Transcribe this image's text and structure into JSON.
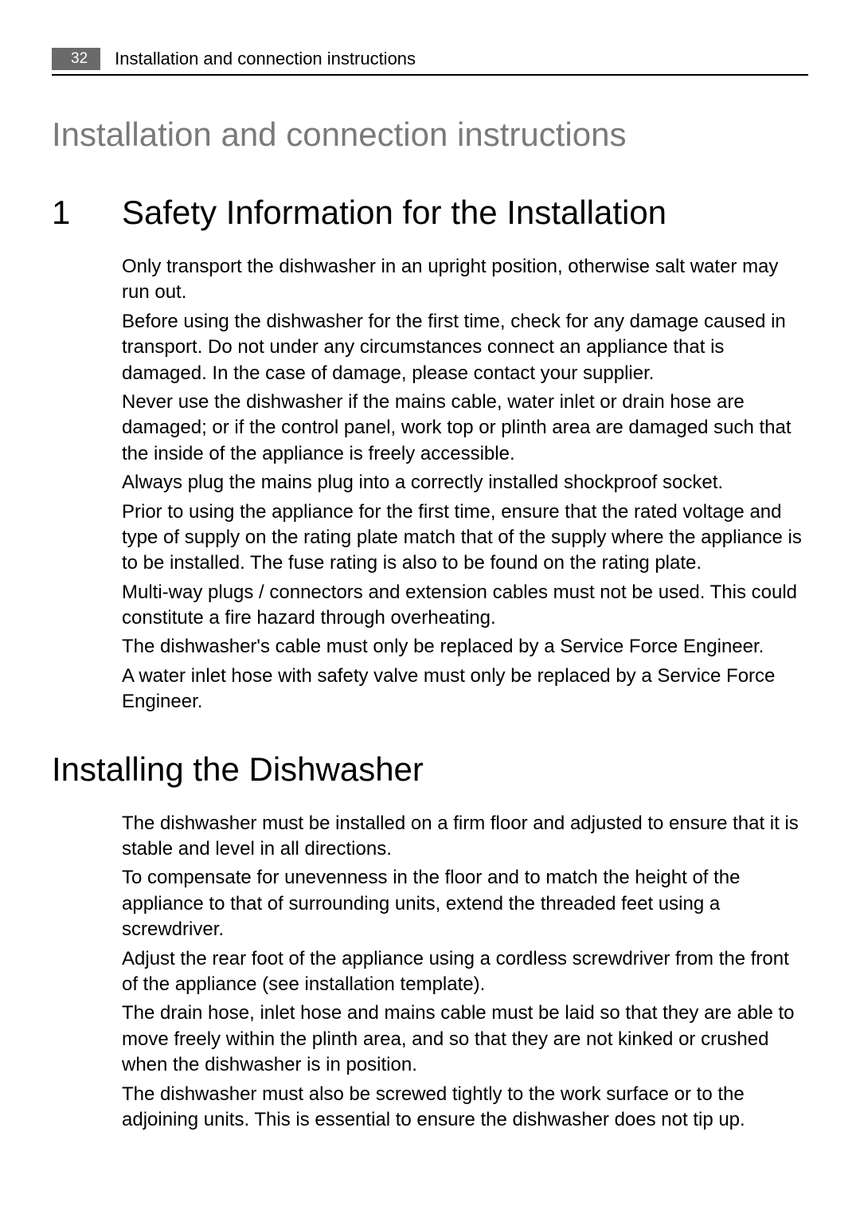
{
  "header": {
    "page_number": "32",
    "title": "Installation and connection instructions"
  },
  "main_title": "Installation and connection instructions",
  "section1": {
    "icon": "1",
    "heading": "Safety Information for the Installation",
    "paragraphs": [
      "Only transport the dishwasher in an upright position, otherwise salt water may run out.",
      "Before using the dishwasher for the first time, check for any damage caused in transport. Do not under any circumstances connect an appliance that is damaged. In the case of damage, please contact your supplier.",
      "Never use the dishwasher if the mains cable, water inlet or drain hose are damaged; or if the control panel, work top or plinth area are damaged such that the inside of the appliance is freely accessible.",
      "Always plug the mains plug into a correctly installed shockproof socket.",
      "Prior to using the appliance for the first time, ensure that the rated voltage and type of supply on the rating plate match that of the supply where the appliance is to be installed. The fuse rating is also to be found on the rating plate.",
      "Multi-way plugs / connectors and extension cables must not be used. This could constitute a fire hazard through overheating.",
      "The dishwasher's cable must only be replaced by a Service Force Engineer.",
      "A water inlet hose with safety valve must only be replaced by a Service Force Engineer."
    ]
  },
  "section2": {
    "heading": "Installing the Dishwasher",
    "paragraphs": [
      "The dishwasher must be installed on a firm floor and adjusted to ensure that it is stable and level in all directions.",
      "To compensate for unevenness in the floor and to match the height of the appliance to that of surrounding units, extend the threaded feet using a screwdriver.",
      "Adjust the rear foot of the appliance using a cordless screwdriver from the front of the appliance (see installation template).",
      "The drain hose, inlet hose and mains cable must be laid so that they are able to move freely within the plinth area, and so that they are not kinked or crushed when the dishwasher is in position.",
      "The dishwasher must also be screwed tightly to the work surface or to the adjoining units. This is essential to ensure the dishwasher does not tip up."
    ]
  }
}
